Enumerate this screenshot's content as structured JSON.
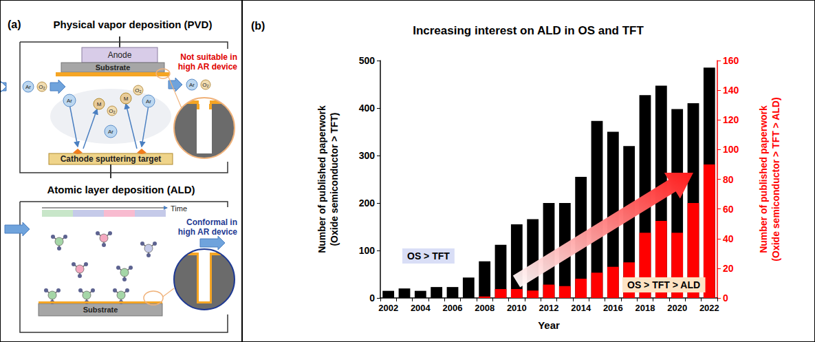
{
  "diagram": {
    "panel_a": {
      "letter": "(a)",
      "pvd": {
        "title": "Physical vapor deposition (PVD)",
        "anode": "Anode",
        "substrate": "Substrate",
        "target": "Cathode sputtering target",
        "note": "Not suitable in high AR device",
        "gas": [
          "Ar",
          "O₂"
        ],
        "metal": "M"
      },
      "ald": {
        "title": "Atomic layer deposition (ALD)",
        "time": "Time",
        "substrate": "Substrate",
        "note": "Conformal in high AR device"
      }
    }
  },
  "chart_data": {
    "type": "bar",
    "panel_label": "(b)",
    "title": "Increasing interest on ALD in OS and TFT",
    "x_label": "Year",
    "y_label": "Number of published paperwork (Oxide semiconductor > TFT)",
    "y2_label": "Number of published paperwork (Oxide semiconductor > TFT > ALD)",
    "categories": [
      "2002",
      null,
      "2004",
      null,
      "2006",
      null,
      "2008",
      null,
      "2010",
      null,
      "2012",
      null,
      "2014",
      null,
      "2016",
      null,
      "2018",
      null,
      "2020",
      null,
      "2022"
    ],
    "series": [
      {
        "name": "OS > TFT",
        "color": "#000000",
        "values": [
          15,
          20,
          15,
          23,
          23,
          43,
          77,
          112,
          155,
          166,
          200,
          200,
          255,
          373,
          350,
          320,
          427,
          447,
          398,
          410,
          485
        ]
      },
      {
        "name": "OS > TFT > ALD",
        "color": "#ff0000",
        "axis": "y2",
        "values": [
          0,
          0,
          0,
          0,
          0,
          0,
          1,
          6,
          6,
          5,
          9,
          8,
          13,
          17,
          21,
          24,
          44,
          52,
          44,
          64,
          90
        ]
      }
    ],
    "ylim": [
      0,
      500
    ],
    "yticks": [
      0,
      100,
      200,
      300,
      400,
      500
    ],
    "y2lim": [
      0,
      160
    ],
    "y2ticks": [
      0,
      20,
      40,
      60,
      80,
      100,
      120,
      140,
      160
    ],
    "grid": false
  }
}
